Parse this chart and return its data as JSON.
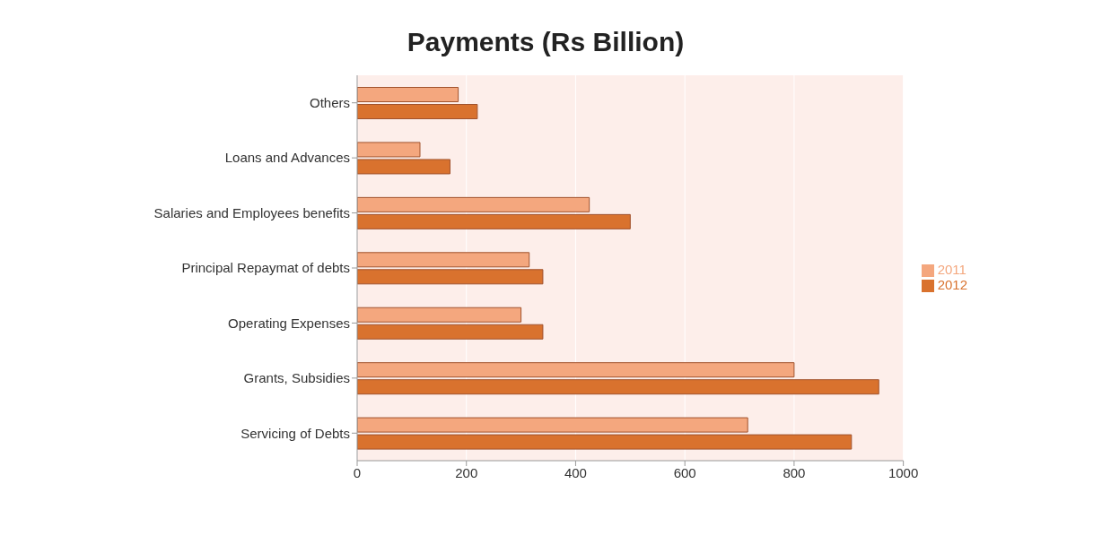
{
  "chart_data": {
    "type": "bar",
    "orientation": "horizontal",
    "title": "Payments (Rs Billion)",
    "categories": [
      "Others",
      "Loans and Advances",
      "Salaries and Employees benefits",
      "Principal Repaymat of debts",
      "Operating Expenses",
      "Grants, Subsidies",
      "Servicing of Debts"
    ],
    "series": [
      {
        "name": "2011",
        "color": "#f4a77e",
        "values": [
          185,
          115,
          425,
          315,
          300,
          800,
          715
        ]
      },
      {
        "name": "2012",
        "color": "#d9722e",
        "values": [
          220,
          170,
          500,
          340,
          340,
          955,
          905
        ]
      }
    ],
    "xlim": [
      0,
      1000
    ],
    "xticks": [
      0,
      200,
      400,
      600,
      800,
      1000
    ],
    "grid": "x",
    "legend": "right"
  }
}
